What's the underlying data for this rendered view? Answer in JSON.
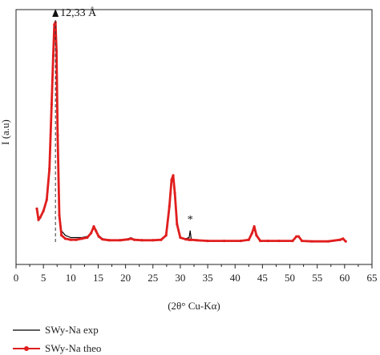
{
  "chart_data": {
    "type": "line",
    "title": "",
    "xlabel": "(2θ° Cu-Kα)",
    "ylabel": "I (a.u)",
    "xlim": [
      0,
      65
    ],
    "ylim": [
      0,
      100
    ],
    "xticks": [
      "0",
      "5",
      "10",
      "15",
      "20",
      "25",
      "30",
      "35",
      "40",
      "45",
      "50",
      "55",
      "60",
      "65"
    ],
    "grid": false,
    "legend": "bottom-left",
    "annotations": [
      {
        "text": "12,33 Å",
        "x": 7.2
      },
      {
        "text": "*",
        "x": 31.8
      }
    ],
    "series": [
      {
        "name": "SWy-Na exp",
        "color": "#000000",
        "x": [
          3.8,
          4.1,
          4.4,
          5.0,
          5.6,
          6.1,
          6.5,
          6.8,
          7.0,
          7.2,
          7.4,
          7.6,
          7.9,
          8.3,
          9.0,
          10,
          11,
          12,
          13,
          13.7,
          14.2,
          14.6,
          15.1,
          15.8,
          17,
          19,
          20.5,
          21,
          21.6,
          23,
          25,
          26.5,
          27.4,
          28,
          28.4,
          28.7,
          29.0,
          29.4,
          30,
          31,
          31.6,
          31.8,
          32.0,
          33,
          35,
          38,
          41,
          42.5,
          43.1,
          43.5,
          43.9,
          44.6,
          46,
          48,
          50.5,
          51.2,
          51.6,
          52.2,
          54,
          57,
          59.2,
          59.7,
          60.2
        ],
        "values": [
          14,
          9.5,
          11.5,
          14,
          19,
          33,
          62,
          84,
          98,
          99,
          86,
          48,
          14,
          5,
          3,
          2,
          2,
          2,
          2.5,
          4,
          7,
          5,
          3,
          1.5,
          1,
          1,
          1.5,
          2,
          1.2,
          0.8,
          0.8,
          1,
          3,
          16,
          28,
          30,
          22,
          8,
          2,
          1.5,
          2,
          5,
          1,
          0.8,
          0.5,
          0.5,
          0.5,
          1,
          4,
          6.5,
          3,
          0.5,
          0.5,
          0.5,
          0.5,
          2.5,
          2.5,
          0.5,
          0.3,
          0.3,
          1,
          1.5,
          0.3
        ]
      },
      {
        "name": "SWy-Na theo",
        "color": "#e01e1e",
        "x": [
          3.8,
          4.1,
          4.4,
          5.0,
          5.6,
          6.1,
          6.5,
          6.8,
          7.0,
          7.2,
          7.4,
          7.6,
          7.9,
          8.3,
          9.0,
          10,
          11,
          12,
          13,
          13.7,
          14.2,
          14.6,
          15.1,
          15.8,
          17,
          19,
          20.5,
          21,
          21.6,
          23,
          25,
          26.5,
          27.4,
          28,
          28.4,
          28.7,
          29.0,
          29.4,
          30,
          31,
          31.6,
          31.8,
          32.0,
          33,
          35,
          38,
          41,
          42.5,
          43.1,
          43.5,
          43.9,
          44.6,
          46,
          48,
          50.5,
          51.2,
          51.6,
          52.2,
          54,
          57,
          59.2,
          59.7,
          60.2
        ],
        "values": [
          15,
          10,
          11,
          14,
          19,
          33,
          62,
          84,
          98,
          99,
          86,
          48,
          12,
          3,
          1.5,
          1,
          1,
          1.5,
          2,
          4,
          7,
          5,
          2.5,
          1.2,
          0.8,
          0.8,
          1.2,
          1.5,
          1,
          0.8,
          0.8,
          1,
          3,
          16,
          28,
          30,
          22,
          8,
          2,
          1.2,
          1,
          1,
          1,
          0.8,
          0.5,
          0.5,
          0.5,
          1,
          4,
          7,
          3,
          0.5,
          0.5,
          0.5,
          0.5,
          2.5,
          2.5,
          0.5,
          0.3,
          0.3,
          1,
          1.5,
          0.3
        ]
      }
    ]
  }
}
